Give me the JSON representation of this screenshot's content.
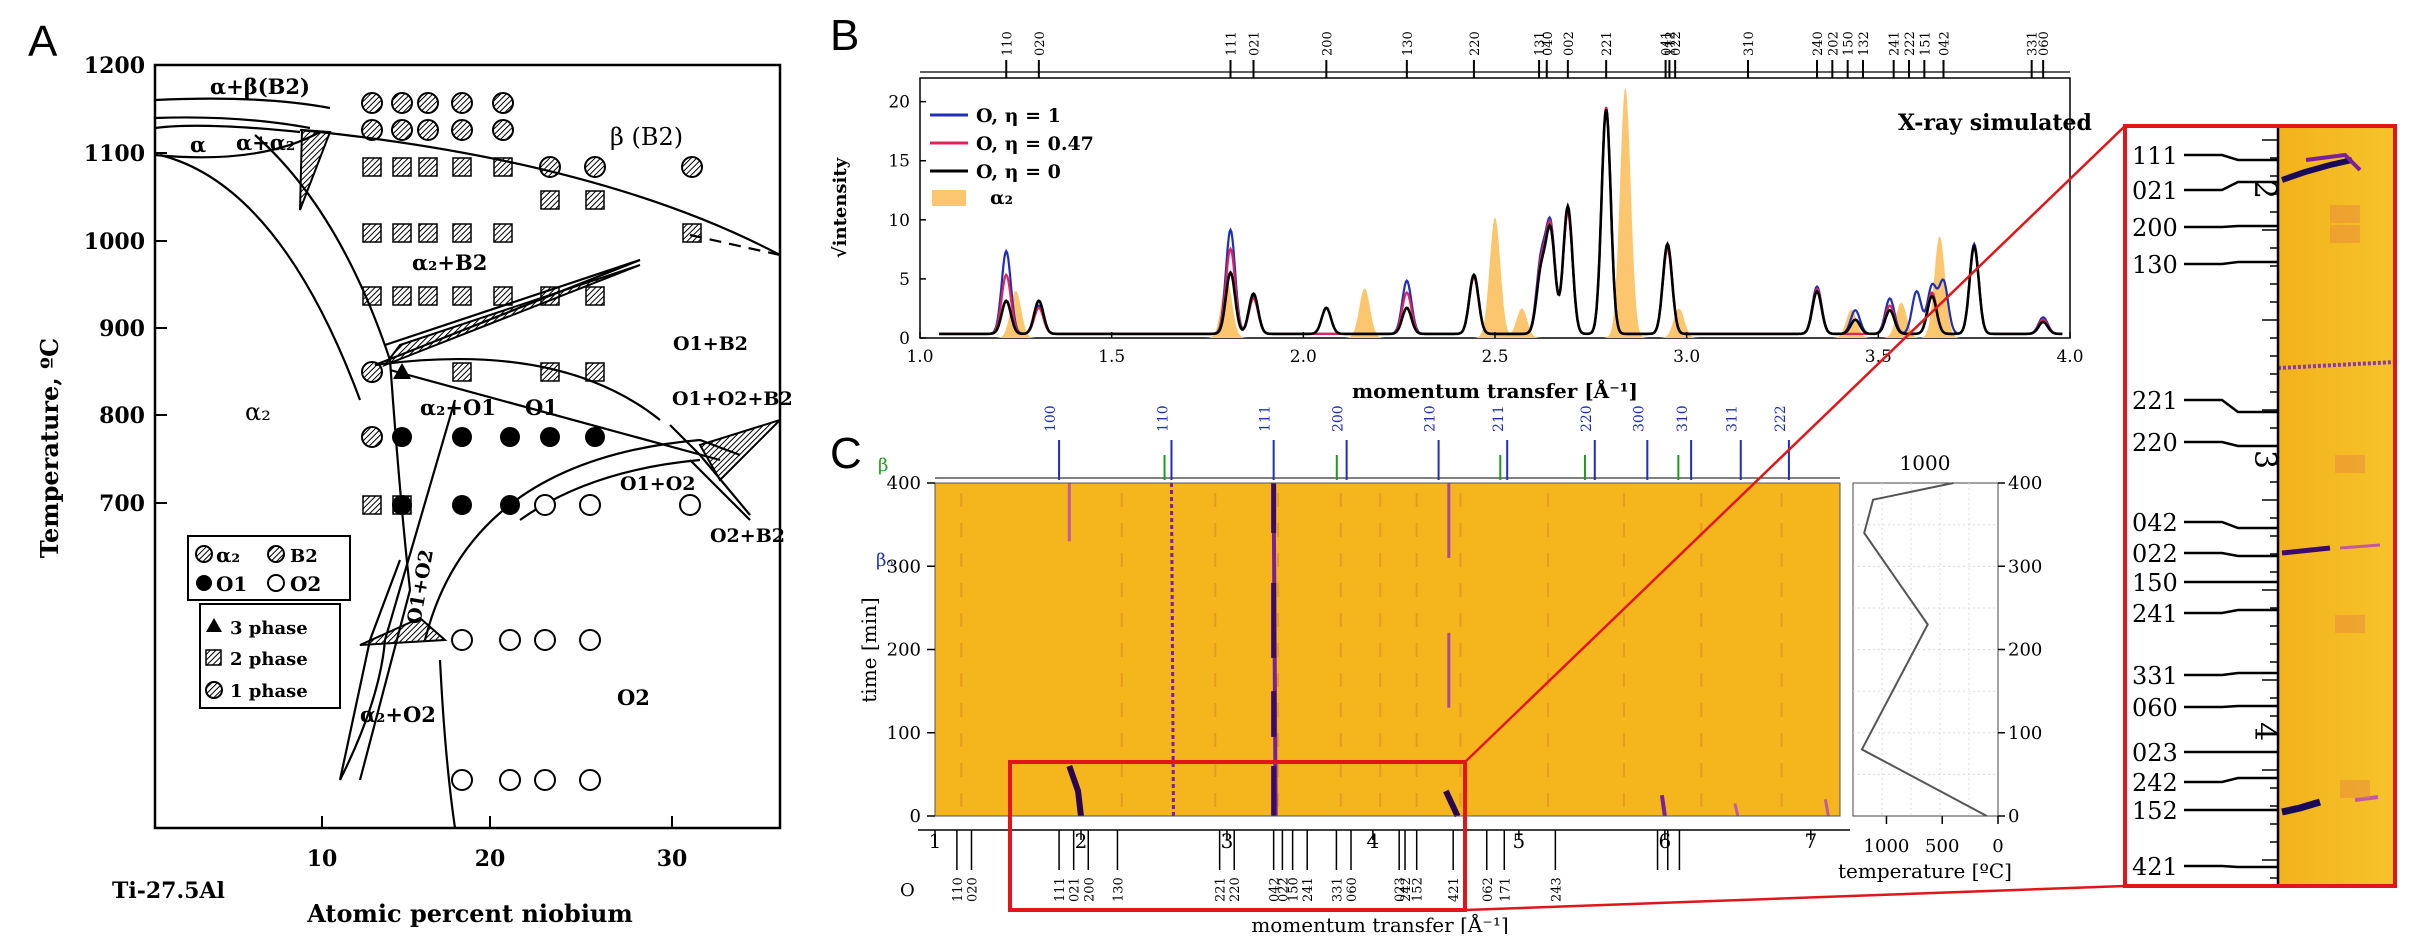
{
  "panels": {
    "a": "A",
    "b": "B",
    "c": "C"
  },
  "colors": {
    "accent_red": "#e0161b",
    "blue": "#1f2fb8",
    "pink": "#e0245a",
    "black": "#000000",
    "alpha2_fill": "#fbc66e",
    "heatmap_bg": "#f5b51d",
    "heatmap_line": "#7a1f9e"
  },
  "panel_a": {
    "ylabel": "Temperature, ºC",
    "xlabel": "Atomic percent niobium",
    "corner_label": "Ti-27.5Al",
    "y_ticks": [
      "1200",
      "1100",
      "1000",
      "900",
      "800",
      "700"
    ],
    "x_ticks": [
      "10",
      "20",
      "30"
    ],
    "region_labels": {
      "ab_b2": "α+β(B2)",
      "alpha": "α",
      "a_a2": "α+α₂",
      "beta_b2": "β (B2)",
      "a2_b2": "α₂+B2",
      "a2": "α₂",
      "a2_o1": "α₂+O1",
      "o1": "O1",
      "o1_b2": "O1+B2",
      "o1_o2_b2": "O1+O2+B2",
      "o1_o2": "O1+O2",
      "o1_o2_vert": "O1+O2",
      "o2_b2": "O2+B2",
      "a2_o2": "α₂+O2",
      "o2": "O2"
    },
    "legend_phases": [
      "α₂",
      "B2",
      "O1",
      "O2"
    ],
    "legend_symbols": [
      "3 phase",
      "2 phase",
      "1 phase"
    ]
  },
  "panel_b": {
    "ylabel": "√intensity",
    "xlabel": "momentum transfer [Å⁻¹]",
    "annotation": "X-ray simulated",
    "legend": [
      "O, η = 1",
      "O, η = 0.47",
      "O, η = 0",
      "α₂"
    ],
    "x_ticks": [
      "1.0",
      "1.5",
      "2.0",
      "2.5",
      "3.0",
      "3.5",
      "4.0"
    ],
    "y_ticks": [
      "0",
      "5",
      "10",
      "15",
      "20"
    ],
    "top_hkl": [
      "110",
      "020",
      "111",
      "021",
      "200",
      "130",
      "220",
      "131",
      "040",
      "002",
      "221",
      "041",
      "112",
      "022",
      "310",
      "240",
      "202",
      "150",
      "132",
      "241",
      "222",
      "151",
      "042",
      "331",
      "060"
    ]
  },
  "panel_c": {
    "ylabel": "time [min]",
    "xlabel": "momentum transfer [Å⁻¹]",
    "right_xlabel": "temperature [ºC]",
    "right_top_label": "1000",
    "beta_o": "βₒ",
    "beta": "β",
    "o_label": "O",
    "y_ticks": [
      "0",
      "100",
      "200",
      "300",
      "400"
    ],
    "x_ticks": [
      "1",
      "2",
      "3",
      "4",
      "5",
      "6",
      "7"
    ],
    "temp_ticks": [
      "1000",
      "500",
      "0"
    ],
    "top_hkl_blue": [
      "100",
      "110",
      "111",
      "200",
      "210",
      "211",
      "220",
      "300",
      "310",
      "311",
      "222"
    ],
    "bottom_hkl": [
      "110",
      "020",
      "111",
      "021",
      "200",
      "130",
      "221",
      "220",
      "042",
      "022",
      "150",
      "241",
      "331",
      "060",
      "023",
      "242",
      "152",
      "421",
      "062",
      "171",
      "243"
    ]
  },
  "zoom": {
    "labels": [
      "111",
      "021",
      "200",
      "130",
      "221",
      "220",
      "042",
      "022",
      "150",
      "241",
      "331",
      "060",
      "023",
      "242",
      "152",
      "421"
    ],
    "ruler_numbers": [
      "2",
      "3",
      "4"
    ]
  },
  "chart_data": [
    {
      "type": "line",
      "title": "X-ray simulated",
      "xlabel": "momentum transfer [Å⁻¹]",
      "ylabel": "√intensity",
      "xlim": [
        1.0,
        4.0
      ],
      "ylim": [
        0,
        22
      ],
      "series": [
        {
          "name": "O, η = 1",
          "peaks": [
            [
              1.225,
              7
            ],
            [
              1.31,
              2.4
            ],
            [
              1.81,
              8.8
            ],
            [
              1.87,
              3.2
            ],
            [
              2.27,
              4.5
            ],
            [
              2.445,
              5
            ],
            [
              2.62,
              6
            ],
            [
              2.645,
              9
            ],
            [
              2.69,
              10.5
            ],
            [
              2.79,
              19
            ],
            [
              2.95,
              7.6
            ],
            [
              3.34,
              4
            ],
            [
              3.44,
              2
            ],
            [
              3.53,
              3
            ],
            [
              3.6,
              3.6
            ],
            [
              3.64,
              4
            ],
            [
              3.67,
              4.4
            ],
            [
              3.75,
              7.6
            ],
            [
              3.93,
              1.4
            ]
          ]
        },
        {
          "name": "O, η = 0.47",
          "peaks": [
            [
              1.225,
              5
            ],
            [
              1.31,
              2.2
            ],
            [
              1.81,
              7.2
            ],
            [
              1.87,
              3
            ],
            [
              2.27,
              3.5
            ],
            [
              2.445,
              4.8
            ],
            [
              2.62,
              5.5
            ],
            [
              2.645,
              8.8
            ],
            [
              2.69,
              10.3
            ],
            [
              2.79,
              19.2
            ],
            [
              2.95,
              7.2
            ],
            [
              3.34,
              3.8
            ],
            [
              3.53,
              2.4
            ],
            [
              3.64,
              3.5
            ],
            [
              3.75,
              7.4
            ],
            [
              3.93,
              1.2
            ]
          ]
        },
        {
          "name": "O, η = 0",
          "peaks": [
            [
              1.225,
              2.8
            ],
            [
              1.31,
              2.8
            ],
            [
              1.81,
              5.2
            ],
            [
              1.87,
              3.4
            ],
            [
              2.06,
              2.2
            ],
            [
              2.27,
              2.2
            ],
            [
              2.445,
              5
            ],
            [
              2.62,
              5
            ],
            [
              2.645,
              8.5
            ],
            [
              2.69,
              10.8
            ],
            [
              2.79,
              19
            ],
            [
              2.95,
              7.6
            ],
            [
              3.34,
              3.6
            ],
            [
              3.44,
              1.2
            ],
            [
              3.53,
              2
            ],
            [
              3.64,
              3.2
            ],
            [
              3.75,
              7.4
            ],
            [
              3.93,
              1
            ]
          ]
        },
        {
          "name": "α₂",
          "peaks": [
            [
              1.25,
              4
            ],
            [
              1.8,
              5
            ],
            [
              2.16,
              4.2
            ],
            [
              2.5,
              10.2
            ],
            [
              2.57,
              2.5
            ],
            [
              2.84,
              21.2
            ],
            [
              2.98,
              2.5
            ],
            [
              3.43,
              2.4
            ],
            [
              3.56,
              3
            ],
            [
              3.66,
              8.6
            ]
          ]
        }
      ]
    },
    {
      "type": "heatmap",
      "xlabel": "momentum transfer [Å⁻¹]",
      "ylabel": "time [min]",
      "xlim": [
        1,
        7.2
      ],
      "ylim": [
        0,
        400
      ],
      "line_positions": [
        1.92,
        2.62,
        3.32,
        4.52,
        5.98,
        6.48
      ],
      "temperature_profile": {
        "time": [
          0,
          80,
          230,
          340,
          380,
          400
        ],
        "temp_C": [
          100,
          1220,
          630,
          1200,
          1120,
          400
        ]
      }
    }
  ]
}
